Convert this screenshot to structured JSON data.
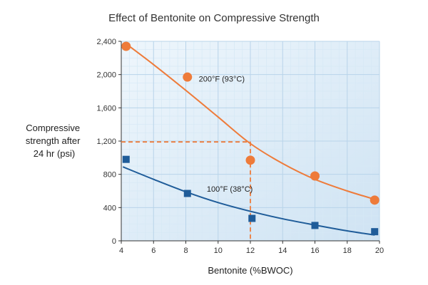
{
  "chart_data": {
    "type": "scatter",
    "title": "Effect of Bentonite on Compressive Strength",
    "xlabel": "Bentonite (%BWOC)",
    "ylabel_lines": [
      "Compressive",
      "strength after",
      "24 hr (psi)"
    ],
    "xlim": [
      4,
      20
    ],
    "ylim": [
      0,
      2400
    ],
    "xticks": [
      4,
      6,
      8,
      10,
      12,
      14,
      16,
      18,
      20
    ],
    "yticks": [
      0,
      400,
      800,
      1200,
      1600,
      2000,
      2400
    ],
    "ytick_labels": [
      "0",
      "400",
      "800",
      "1,200",
      "1,600",
      "2,000",
      "2,400"
    ],
    "grid": true,
    "series": [
      {
        "name": "200°F (93°C)",
        "color": "#ee7b3a",
        "marker": "circle",
        "points": [
          [
            4.3,
            2340
          ],
          [
            8.1,
            1970
          ],
          [
            12.0,
            970
          ],
          [
            16.0,
            780
          ],
          [
            19.7,
            490
          ]
        ],
        "fit": [
          [
            4.3,
            2370
          ],
          [
            6,
            2120
          ],
          [
            8,
            1810
          ],
          [
            10,
            1490
          ],
          [
            12,
            1170
          ],
          [
            14,
            930
          ],
          [
            16,
            740
          ],
          [
            18,
            600
          ],
          [
            19.7,
            500
          ]
        ]
      },
      {
        "name": "100°F (38°C)",
        "color": "#1f5c99",
        "marker": "square",
        "points": [
          [
            4.3,
            980
          ],
          [
            8.1,
            570
          ],
          [
            12.1,
            270
          ],
          [
            16.0,
            185
          ],
          [
            19.7,
            110
          ]
        ],
        "fit": [
          [
            4.1,
            890
          ],
          [
            6,
            740
          ],
          [
            8,
            590
          ],
          [
            10,
            460
          ],
          [
            12,
            355
          ],
          [
            14,
            265
          ],
          [
            16,
            190
          ],
          [
            18,
            120
          ],
          [
            19.7,
            70
          ]
        ]
      }
    ],
    "reference_line": {
      "x": 12,
      "y": 1190,
      "color": "#ee7b3a"
    }
  }
}
